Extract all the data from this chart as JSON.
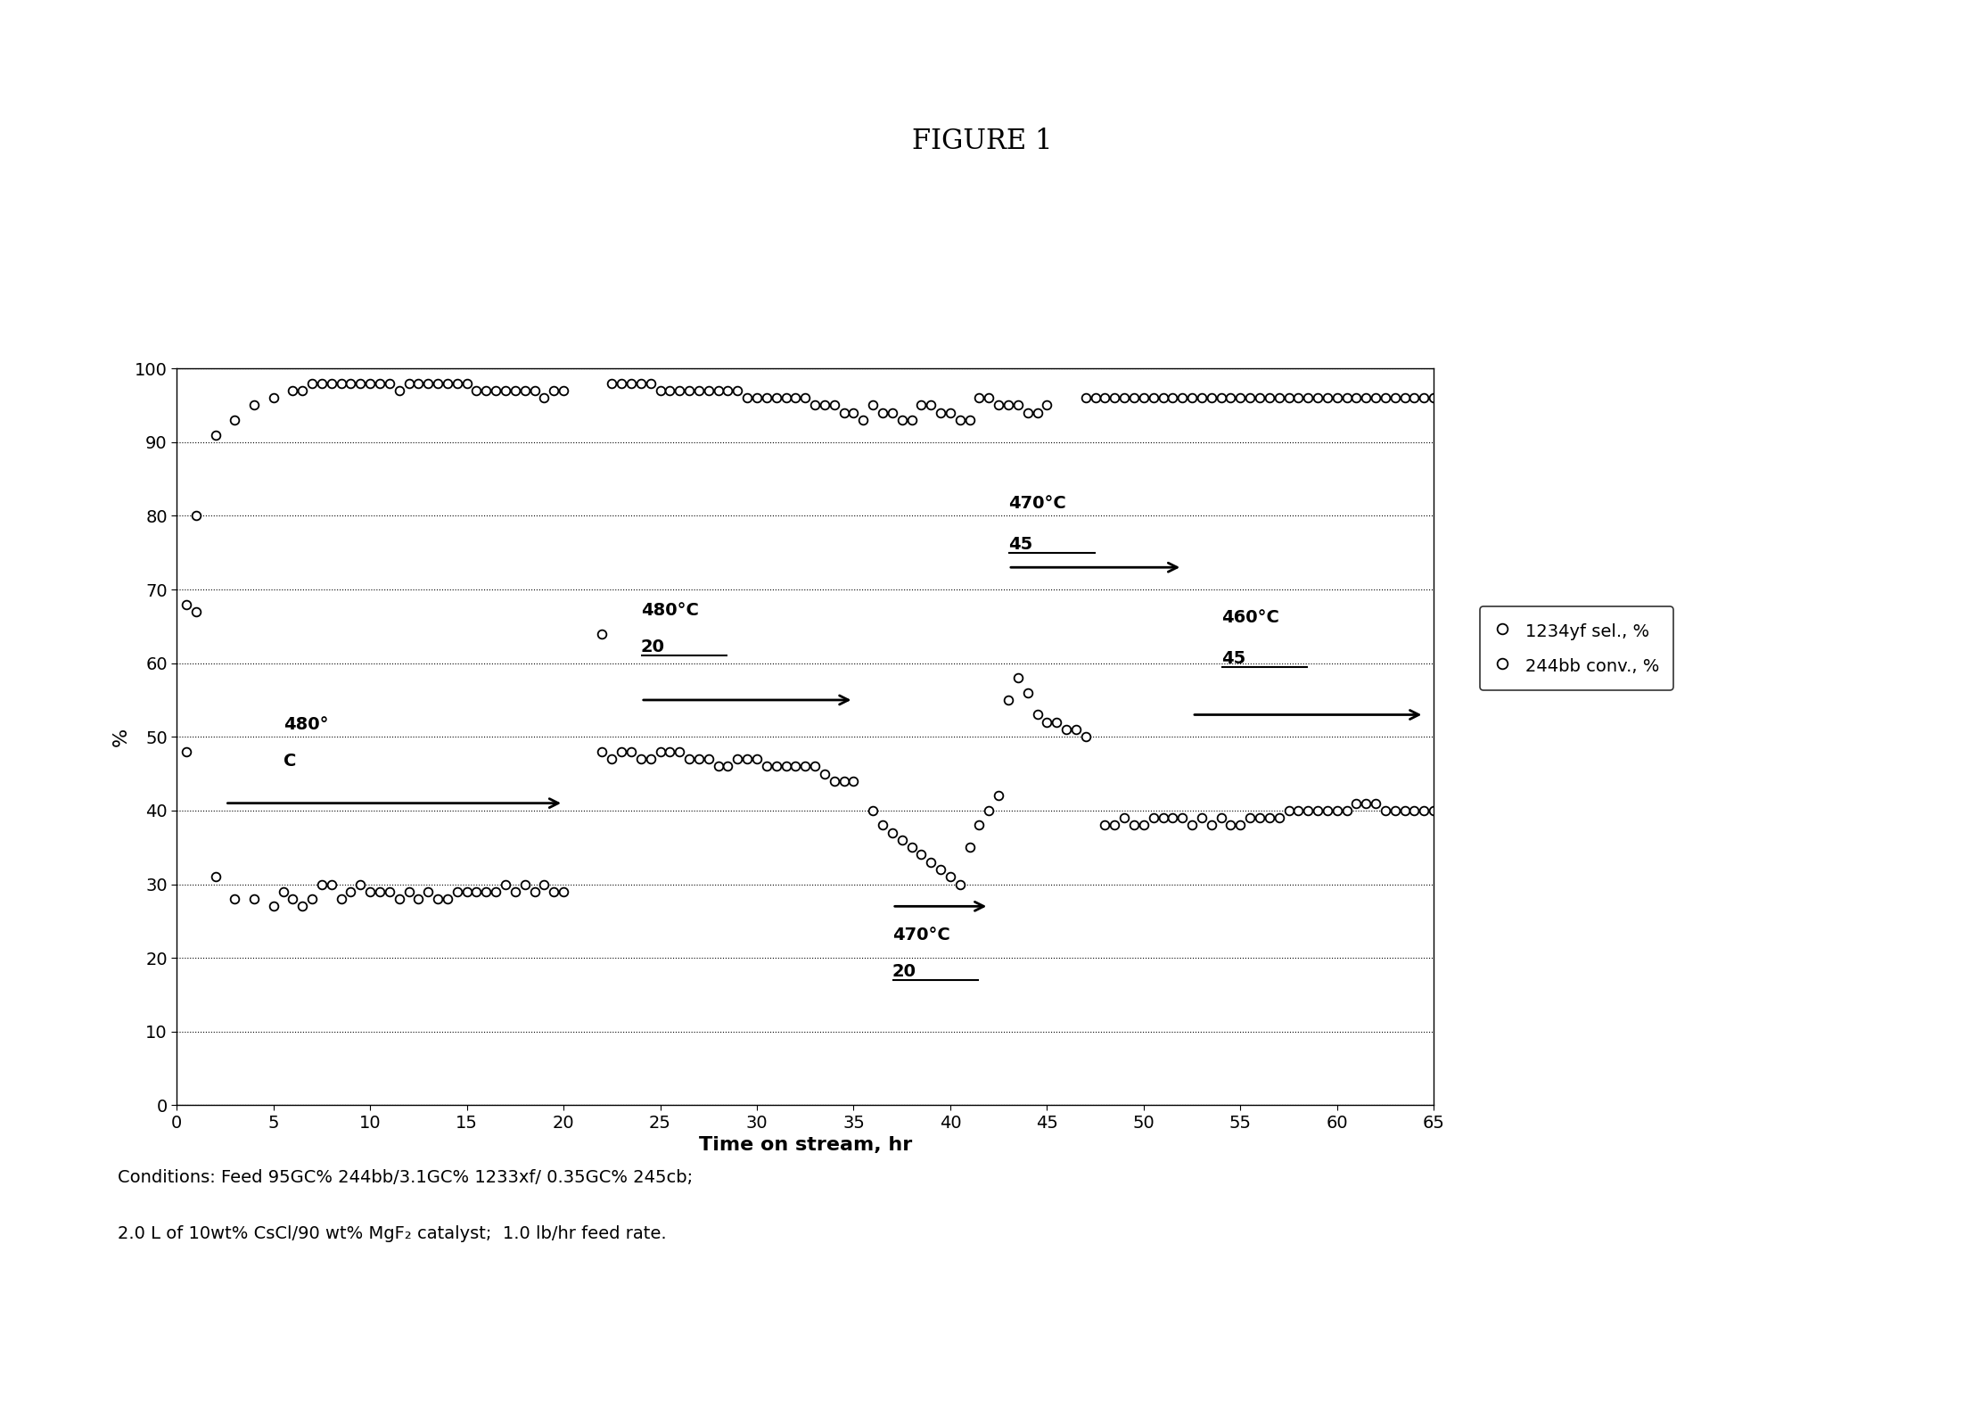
{
  "title": "FIGURE 1",
  "xlabel": "Time on stream, hr",
  "ylabel": "%",
  "xlim": [
    0,
    65
  ],
  "ylim": [
    0,
    100
  ],
  "xticks": [
    0,
    5,
    10,
    15,
    20,
    25,
    30,
    35,
    40,
    45,
    50,
    55,
    60,
    65
  ],
  "yticks": [
    0,
    10,
    20,
    30,
    40,
    50,
    60,
    70,
    80,
    90,
    100
  ],
  "caption_line1": "Conditions: Feed 95GC% 244bb/3.1GC% 1233xf/ 0.35GC% 245cb;",
  "caption_line2": "2.0 L of 10wt% CsCl/90 wt% MgF₂ catalyst;  1.0 lb/hr feed rate.",
  "legend_labels": [
    "1234yf sel., %",
    "244bb conv., %"
  ],
  "sel_data": [
    [
      0.5,
      68
    ],
    [
      1,
      67
    ],
    [
      2,
      91
    ],
    [
      3,
      93
    ],
    [
      4,
      95
    ],
    [
      5,
      96
    ],
    [
      6,
      97
    ],
    [
      6.5,
      97
    ],
    [
      7,
      98
    ],
    [
      7.5,
      98
    ],
    [
      8,
      98
    ],
    [
      8.5,
      98
    ],
    [
      9,
      98
    ],
    [
      9.5,
      98
    ],
    [
      10,
      98
    ],
    [
      10.5,
      98
    ],
    [
      11,
      98
    ],
    [
      11.5,
      97
    ],
    [
      12,
      98
    ],
    [
      12.5,
      98
    ],
    [
      13,
      98
    ],
    [
      13.5,
      98
    ],
    [
      14,
      98
    ],
    [
      14.5,
      98
    ],
    [
      15,
      98
    ],
    [
      15.5,
      97
    ],
    [
      16,
      97
    ],
    [
      16.5,
      97
    ],
    [
      17,
      97
    ],
    [
      17.5,
      97
    ],
    [
      18,
      97
    ],
    [
      18.5,
      97
    ],
    [
      19,
      96
    ],
    [
      19.5,
      97
    ],
    [
      20,
      97
    ],
    [
      22,
      64
    ],
    [
      22.5,
      98
    ],
    [
      23,
      98
    ],
    [
      23.5,
      98
    ],
    [
      24,
      98
    ],
    [
      24.5,
      98
    ],
    [
      25,
      97
    ],
    [
      25.5,
      97
    ],
    [
      26,
      97
    ],
    [
      26.5,
      97
    ],
    [
      27,
      97
    ],
    [
      27.5,
      97
    ],
    [
      28,
      97
    ],
    [
      28.5,
      97
    ],
    [
      29,
      97
    ],
    [
      29.5,
      96
    ],
    [
      30,
      96
    ],
    [
      30.5,
      96
    ],
    [
      31,
      96
    ],
    [
      31.5,
      96
    ],
    [
      32,
      96
    ],
    [
      32.5,
      96
    ],
    [
      33,
      95
    ],
    [
      33.5,
      95
    ],
    [
      34,
      95
    ],
    [
      34.5,
      94
    ],
    [
      35,
      94
    ],
    [
      35.5,
      93
    ],
    [
      36,
      95
    ],
    [
      36.5,
      94
    ],
    [
      37,
      94
    ],
    [
      37.5,
      93
    ],
    [
      38,
      93
    ],
    [
      38.5,
      95
    ],
    [
      39,
      95
    ],
    [
      39.5,
      94
    ],
    [
      40,
      94
    ],
    [
      40.5,
      93
    ],
    [
      41,
      93
    ],
    [
      41.5,
      96
    ],
    [
      42,
      96
    ],
    [
      42.5,
      95
    ],
    [
      43,
      95
    ],
    [
      43.5,
      95
    ],
    [
      44,
      94
    ],
    [
      44.5,
      94
    ],
    [
      45,
      95
    ],
    [
      47,
      96
    ],
    [
      47.5,
      96
    ],
    [
      48,
      96
    ],
    [
      48.5,
      96
    ],
    [
      49,
      96
    ],
    [
      49.5,
      96
    ],
    [
      50,
      96
    ],
    [
      50.5,
      96
    ],
    [
      51,
      96
    ],
    [
      51.5,
      96
    ],
    [
      52,
      96
    ],
    [
      52.5,
      96
    ],
    [
      53,
      96
    ],
    [
      53.5,
      96
    ],
    [
      54,
      96
    ],
    [
      54.5,
      96
    ],
    [
      55,
      96
    ],
    [
      55.5,
      96
    ],
    [
      56,
      96
    ],
    [
      56.5,
      96
    ],
    [
      57,
      96
    ],
    [
      57.5,
      96
    ],
    [
      58,
      96
    ],
    [
      58.5,
      96
    ],
    [
      59,
      96
    ],
    [
      59.5,
      96
    ],
    [
      60,
      96
    ],
    [
      60.5,
      96
    ],
    [
      61,
      96
    ],
    [
      61.5,
      96
    ],
    [
      62,
      96
    ],
    [
      62.5,
      96
    ],
    [
      63,
      96
    ],
    [
      63.5,
      96
    ],
    [
      64,
      96
    ],
    [
      64.5,
      96
    ],
    [
      65,
      96
    ]
  ],
  "conv_data": [
    [
      0.5,
      48
    ],
    [
      1,
      80
    ],
    [
      2,
      31
    ],
    [
      3,
      28
    ],
    [
      4,
      28
    ],
    [
      5,
      27
    ],
    [
      5.5,
      29
    ],
    [
      6,
      28
    ],
    [
      6.5,
      27
    ],
    [
      7,
      28
    ],
    [
      7.5,
      30
    ],
    [
      8,
      30
    ],
    [
      8.5,
      28
    ],
    [
      9,
      29
    ],
    [
      9.5,
      30
    ],
    [
      10,
      29
    ],
    [
      10.5,
      29
    ],
    [
      11,
      29
    ],
    [
      11.5,
      28
    ],
    [
      12,
      29
    ],
    [
      12.5,
      28
    ],
    [
      13,
      29
    ],
    [
      13.5,
      28
    ],
    [
      14,
      28
    ],
    [
      14.5,
      29
    ],
    [
      15,
      29
    ],
    [
      15.5,
      29
    ],
    [
      16,
      29
    ],
    [
      16.5,
      29
    ],
    [
      17,
      30
    ],
    [
      17.5,
      29
    ],
    [
      18,
      30
    ],
    [
      18.5,
      29
    ],
    [
      19,
      30
    ],
    [
      19.5,
      29
    ],
    [
      20,
      29
    ],
    [
      22,
      48
    ],
    [
      22.5,
      47
    ],
    [
      23,
      48
    ],
    [
      23.5,
      48
    ],
    [
      24,
      47
    ],
    [
      24.5,
      47
    ],
    [
      25,
      48
    ],
    [
      25.5,
      48
    ],
    [
      26,
      48
    ],
    [
      26.5,
      47
    ],
    [
      27,
      47
    ],
    [
      27.5,
      47
    ],
    [
      28,
      46
    ],
    [
      28.5,
      46
    ],
    [
      29,
      47
    ],
    [
      29.5,
      47
    ],
    [
      30,
      47
    ],
    [
      30.5,
      46
    ],
    [
      31,
      46
    ],
    [
      31.5,
      46
    ],
    [
      32,
      46
    ],
    [
      32.5,
      46
    ],
    [
      33,
      46
    ],
    [
      33.5,
      45
    ],
    [
      34,
      44
    ],
    [
      34.5,
      44
    ],
    [
      35,
      44
    ],
    [
      36,
      40
    ],
    [
      36.5,
      38
    ],
    [
      37,
      37
    ],
    [
      37.5,
      36
    ],
    [
      38,
      35
    ],
    [
      38.5,
      34
    ],
    [
      39,
      33
    ],
    [
      39.5,
      32
    ],
    [
      40,
      31
    ],
    [
      40.5,
      30
    ],
    [
      41,
      35
    ],
    [
      41.5,
      38
    ],
    [
      42,
      40
    ],
    [
      42.5,
      42
    ],
    [
      43,
      55
    ],
    [
      43.5,
      58
    ],
    [
      44,
      56
    ],
    [
      44.5,
      53
    ],
    [
      45,
      52
    ],
    [
      45.5,
      52
    ],
    [
      46,
      51
    ],
    [
      46.5,
      51
    ],
    [
      47,
      50
    ],
    [
      48,
      38
    ],
    [
      48.5,
      38
    ],
    [
      49,
      39
    ],
    [
      49.5,
      38
    ],
    [
      50,
      38
    ],
    [
      50.5,
      39
    ],
    [
      51,
      39
    ],
    [
      51.5,
      39
    ],
    [
      52,
      39
    ],
    [
      52.5,
      38
    ],
    [
      53,
      39
    ],
    [
      53.5,
      38
    ],
    [
      54,
      39
    ],
    [
      54.5,
      38
    ],
    [
      55,
      38
    ],
    [
      55.5,
      39
    ],
    [
      56,
      39
    ],
    [
      56.5,
      39
    ],
    [
      57,
      39
    ],
    [
      57.5,
      40
    ],
    [
      58,
      40
    ],
    [
      58.5,
      40
    ],
    [
      59,
      40
    ],
    [
      59.5,
      40
    ],
    [
      60,
      40
    ],
    [
      60.5,
      40
    ],
    [
      61,
      41
    ],
    [
      61.5,
      41
    ],
    [
      62,
      41
    ],
    [
      62.5,
      40
    ],
    [
      63,
      40
    ],
    [
      63.5,
      40
    ],
    [
      64,
      40
    ],
    [
      64.5,
      40
    ],
    [
      65,
      40
    ]
  ],
  "background_color": "#ffffff",
  "marker_size": 7,
  "figure_size": [
    22.03,
    15.89
  ],
  "dpi": 100
}
